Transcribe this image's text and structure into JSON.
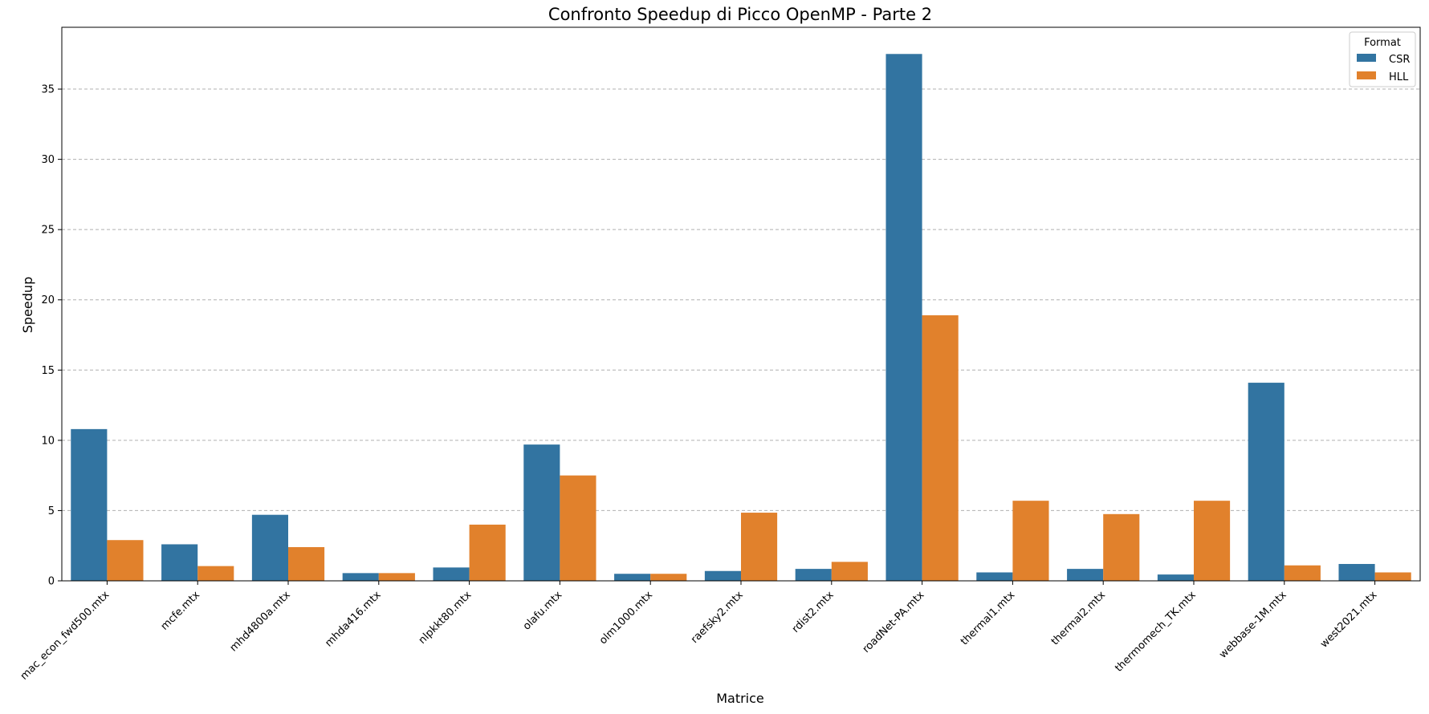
{
  "chart_data": {
    "type": "bar",
    "title": "Confronto Speedup di Picco OpenMP - Parte 2",
    "xlabel": "Matrice",
    "ylabel": "Speedup",
    "ylim": [
      0,
      39.4
    ],
    "yticks": [
      0,
      5,
      10,
      15,
      20,
      25,
      30,
      35
    ],
    "grid": "y-dashed",
    "legend": {
      "title": "Format",
      "placement": "top-right"
    },
    "categories": [
      "mac_econ_fwd500.mtx",
      "mcfe.mtx",
      "mhd4800a.mtx",
      "mhda416.mtx",
      "nlpkkt80.mtx",
      "olafu.mtx",
      "olm1000.mtx",
      "raefsky2.mtx",
      "rdist2.mtx",
      "roadNet-PA.mtx",
      "thermal1.mtx",
      "thermal2.mtx",
      "thermomech_TK.mtx",
      "webbase-1M.mtx",
      "west2021.mtx"
    ],
    "series": [
      {
        "name": "CSR",
        "color": "#3274a1",
        "values": [
          10.8,
          2.6,
          4.7,
          0.55,
          0.95,
          9.7,
          0.5,
          0.7,
          0.85,
          37.5,
          0.6,
          0.85,
          0.45,
          14.1,
          1.2
        ]
      },
      {
        "name": "HLL",
        "color": "#e1812c",
        "values": [
          2.9,
          1.05,
          2.4,
          0.55,
          4.0,
          7.5,
          0.5,
          4.85,
          1.35,
          18.9,
          5.7,
          4.75,
          5.7,
          1.1,
          0.6
        ]
      }
    ]
  }
}
